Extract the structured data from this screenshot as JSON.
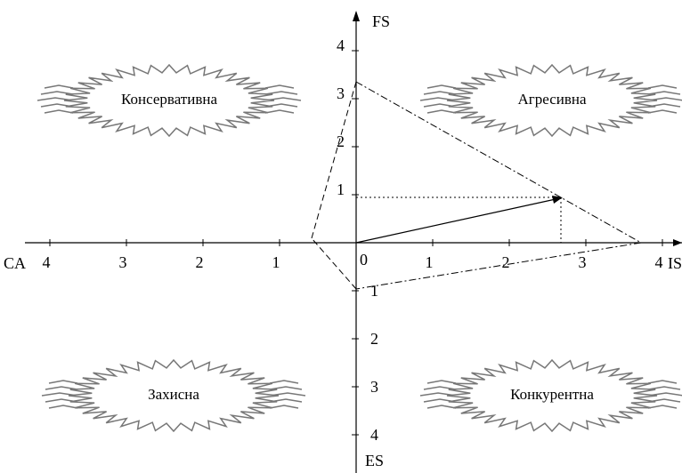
{
  "axes": {
    "top": "FS",
    "bottom": "ES",
    "left": "CA",
    "right": "IS"
  },
  "ticks": {
    "origin": "0",
    "right": [
      "1",
      "2",
      "3",
      "4"
    ],
    "left": [
      "1",
      "2",
      "3",
      "4"
    ],
    "up": [
      "1",
      "2",
      "3",
      "4"
    ],
    "down": [
      "1",
      "2",
      "3",
      "4"
    ]
  },
  "quadrants": {
    "top_left": "Консервативна",
    "top_right": "Агресивна",
    "bottom_left": "Захисна",
    "bottom_right": "Конкурентна"
  }
}
